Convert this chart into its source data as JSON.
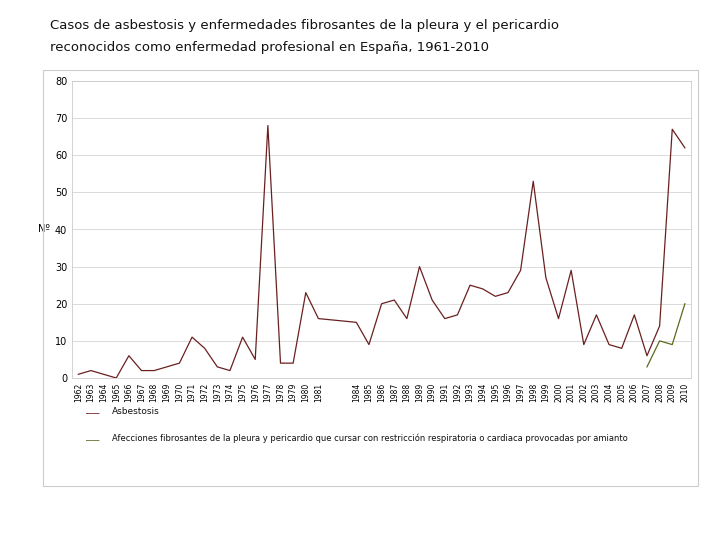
{
  "title_line1": "Casos de asbestosis y enfermedades fibrosantes de la pleura y el pericardio",
  "title_line2": "reconocidos como enfermedad profesional en España, 1961-2010",
  "ylabel": "Nº",
  "years": [
    1962,
    1963,
    1964,
    1965,
    1966,
    1967,
    1968,
    1969,
    1970,
    1971,
    1972,
    1973,
    1974,
    1975,
    1976,
    1977,
    1978,
    1979,
    1980,
    1981,
    1984,
    1985,
    1986,
    1987,
    1988,
    1989,
    1990,
    1991,
    1992,
    1993,
    1994,
    1995,
    1996,
    1997,
    1998,
    1999,
    2000,
    2001,
    2002,
    2003,
    2004,
    2005,
    2006,
    2007,
    2008,
    2009,
    2010
  ],
  "asbestosis": [
    1,
    2,
    1,
    0,
    6,
    2,
    2,
    3,
    4,
    11,
    8,
    3,
    2,
    11,
    5,
    68,
    4,
    4,
    23,
    16,
    15,
    9,
    20,
    21,
    16,
    30,
    21,
    16,
    17,
    25,
    24,
    22,
    23,
    29,
    53,
    27,
    16,
    29,
    9,
    17,
    9,
    8,
    17,
    6,
    14,
    67,
    62
  ],
  "pleura": [
    null,
    null,
    null,
    null,
    null,
    null,
    null,
    null,
    null,
    null,
    null,
    null,
    null,
    null,
    null,
    null,
    null,
    null,
    null,
    null,
    null,
    null,
    null,
    null,
    null,
    null,
    null,
    null,
    null,
    null,
    null,
    null,
    null,
    null,
    null,
    null,
    null,
    null,
    null,
    null,
    null,
    null,
    null,
    3,
    10,
    9,
    20
  ],
  "asbestosis_color": "#6B2020",
  "pleura_color": "#5A6B20",
  "background_color": "#ffffff",
  "box_color": "#cccccc",
  "ylim": [
    0,
    80
  ],
  "yticks": [
    0,
    10,
    20,
    30,
    40,
    50,
    60,
    70,
    80
  ],
  "legend_asbestosis": "Asbestosis",
  "legend_pleura": "Afecciones fibrosantes de la pleura y pericardio que cursar con restricción respiratoria o cardiaca provocadas por amianto",
  "title_fontsize": 9.5,
  "axis_fontsize": 7,
  "tick_fontsize": 5.5
}
